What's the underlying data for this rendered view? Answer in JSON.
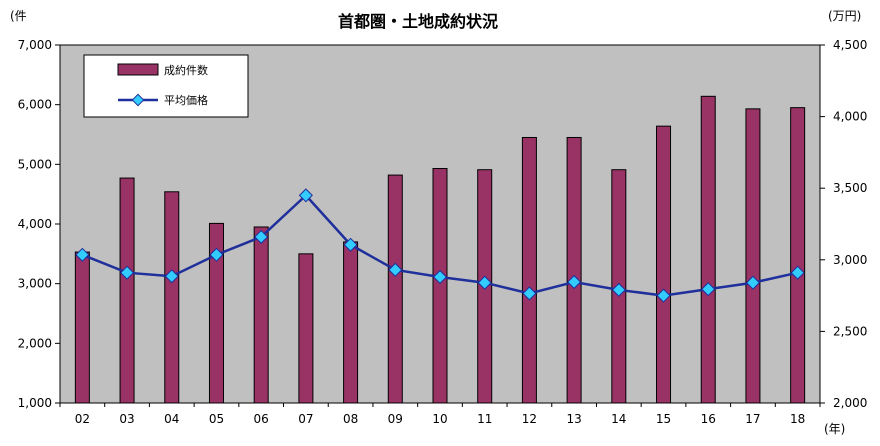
{
  "chart_data": {
    "type": "bar+line",
    "title": "首都圏・土地成約状況",
    "left_axis_unit": "(件",
    "right_axis_unit": "(万円)",
    "x_axis_unit": "(年)",
    "categories": [
      "02",
      "03",
      "04",
      "05",
      "06",
      "07",
      "08",
      "09",
      "10",
      "11",
      "12",
      "13",
      "14",
      "15",
      "16",
      "17",
      "18"
    ],
    "series": [
      {
        "name": "成約件数",
        "type": "bar",
        "axis": "left",
        "color": "#993366",
        "values": [
          3530,
          4770,
          4540,
          4010,
          3950,
          3500,
          3700,
          4820,
          4930,
          4910,
          5450,
          5450,
          4910,
          5640,
          6140,
          5930,
          5950
        ]
      },
      {
        "name": "平均価格",
        "type": "line",
        "axis": "right",
        "color": "#1f2f9b",
        "marker_color": "#33ccff",
        "values": [
          3035,
          2910,
          2885,
          3035,
          3160,
          3450,
          3105,
          2930,
          2880,
          2840,
          2765,
          2845,
          2790,
          2750,
          2795,
          2840,
          2910
        ]
      }
    ],
    "left_ylim": [
      1000,
      7000
    ],
    "left_yticks": [
      "1,000",
      "2,000",
      "3,000",
      "4,000",
      "5,000",
      "6,000",
      "7,000"
    ],
    "right_ylim": [
      2000,
      4500
    ],
    "right_yticks": [
      "2,000",
      "2,500",
      "3,000",
      "3,500",
      "4,000",
      "4,500"
    ],
    "plot_background": "#c0c0c0",
    "legend_position": "top-left",
    "grid": false
  }
}
